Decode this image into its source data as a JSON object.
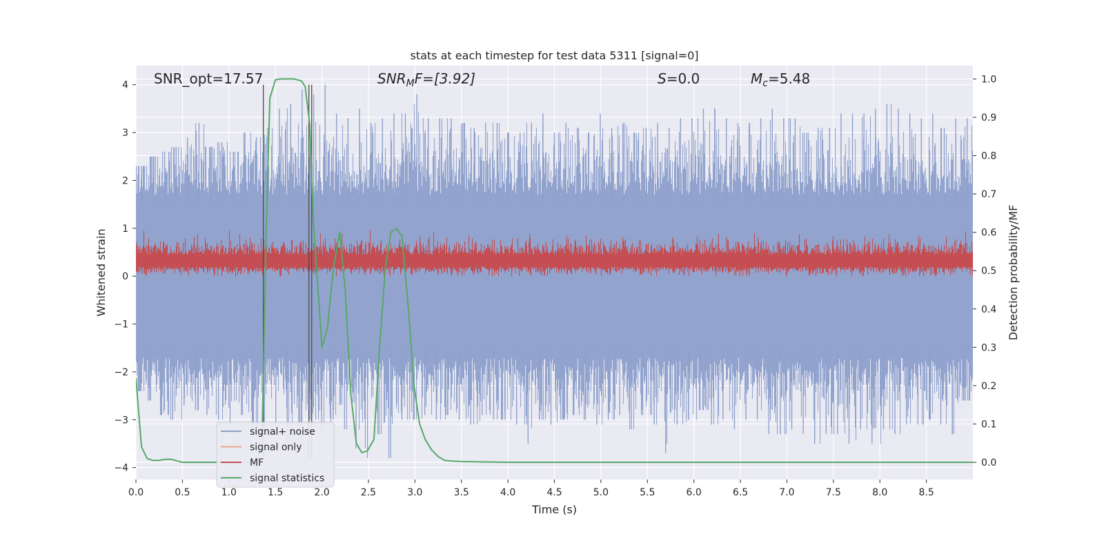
{
  "chart_data": {
    "type": "line",
    "title": "stats at each timestep for test data 5311 [signal=0]",
    "xlabel": "Time (s)",
    "ylabel": "Whitened strain",
    "y2label": "Detection probability/MF",
    "xlim": [
      0.0,
      9.0
    ],
    "ylim": [
      -4.25,
      4.4
    ],
    "y2lim": [
      -0.045,
      1.035
    ],
    "xticks": [
      0.0,
      0.5,
      1.0,
      1.5,
      2.0,
      2.5,
      3.0,
      3.5,
      4.0,
      4.5,
      5.0,
      5.5,
      6.0,
      6.5,
      7.0,
      7.5,
      8.0,
      8.5
    ],
    "xtick_labels": [
      "0.0",
      "0.5",
      "1.0",
      "1.5",
      "2.0",
      "2.5",
      "3.0",
      "3.5",
      "4.0",
      "4.5",
      "5.0",
      "5.5",
      "6.0",
      "6.5",
      "7.0",
      "7.5",
      "8.0",
      "8.5"
    ],
    "yticks": [
      4,
      3,
      2,
      1,
      0,
      -1,
      -2,
      -3,
      -4
    ],
    "ytick_labels": [
      "4",
      "3",
      "2",
      "1",
      "0",
      "−1",
      "−2",
      "−3",
      "−4"
    ],
    "y2ticks": [
      1.0,
      0.9,
      0.8,
      0.7,
      0.6,
      0.5,
      0.4,
      0.3,
      0.2,
      0.1,
      0.0
    ],
    "y2tick_labels": [
      "1.0",
      "0.9",
      "0.8",
      "0.7",
      "0.6",
      "0.5",
      "0.4",
      "0.3",
      "0.2",
      "0.1",
      "0.0"
    ],
    "annotations": {
      "snr_opt": "SNR_opt=17.57",
      "snr_mf_main": "SNR",
      "snr_mf_sub": "M",
      "snr_mf_rest": "F=[3.92]",
      "s_var": "S",
      "s_val": "=0.0",
      "mc_var": "M",
      "mc_sub": "c",
      "mc_val": "=5.48"
    },
    "vertical_markers": [
      {
        "x": 1.37,
        "y_range": [
          -3.8,
          4.0
        ]
      },
      {
        "x": 1.86,
        "y_range": [
          -3.8,
          4.0
        ]
      },
      {
        "x": 1.89,
        "y_range": [
          -3.8,
          4.0
        ]
      }
    ],
    "series": [
      {
        "name": "signal+ noise",
        "color": "#8da0cb",
        "axis": "left",
        "description": "dense whitened noise trace",
        "upper_envelope": [
          2.3,
          2.5,
          2.6,
          2.7,
          2.9,
          3.2,
          2.7,
          2.8,
          2.6,
          3.0,
          2.9,
          3.1,
          3.5,
          3.6,
          3.9,
          3.8,
          4.0,
          3.4,
          3.3,
          3.5,
          3.2,
          3.3,
          3.4,
          3.4,
          3.8,
          3.3,
          3.3,
          3.3,
          3.2,
          3.1,
          3.2,
          3.2,
          3.0,
          3.0,
          3.2,
          3.4,
          3.0,
          3.2,
          3.1,
          3.0,
          3.4,
          3.1,
          3.2,
          3.0,
          3.1,
          3.2,
          3.1,
          3.3,
          3.3,
          3.5,
          3.5,
          3.3,
          3.2,
          3.2,
          3.3,
          3.5,
          3.3,
          3.3,
          3.0,
          3.1,
          3.1,
          3.4,
          3.4,
          3.4,
          3.5,
          3.6,
          3.5,
          3.4,
          3.3,
          3.4,
          3.1,
          3.3,
          3.3
        ],
        "lower_envelope": [
          -2.4,
          -2.6,
          -2.9,
          -3.0,
          -2.7,
          -2.8,
          -2.9,
          -3.0,
          -3.1,
          -2.9,
          -3.3,
          -3.2,
          -3.3,
          -3.6,
          -3.6,
          -3.0,
          -3.2,
          -3.0,
          -3.2,
          -3.6,
          -3.8,
          -3.3,
          -3.8,
          -3.0,
          -3.0,
          -2.9,
          -3.0,
          -2.9,
          -3.0,
          -3.1,
          -2.9,
          -3.0,
          -3.0,
          -3.1,
          -3.5,
          -3.0,
          -3.1,
          -3.0,
          -2.9,
          -3.0,
          -3.1,
          -3.0,
          -2.9,
          -3.2,
          -2.9,
          -3.1,
          -3.7,
          -3.1,
          -3.0,
          -2.8,
          -3.1,
          -3.0,
          -3.2,
          -3.0,
          -3.0,
          -3.3,
          -3.3,
          -3.2,
          -3.3,
          -3.5,
          -3.3,
          -3.3,
          -3.5,
          -3.2,
          -3.5,
          -3.2,
          -3.3,
          -3.1,
          -3.1,
          -3.0,
          -3.1,
          -3.3,
          -2.6
        ]
      },
      {
        "name": "signal only",
        "color": "#e8a98b",
        "axis": "left",
        "description": "not visible in plot area (signal=0)"
      },
      {
        "name": "MF",
        "color": "#c44e52",
        "axis": "left",
        "description": "matched filter trace between about 0.0 and 1.0"
      },
      {
        "name": "signal statistics",
        "color": "#55a868",
        "axis": "right",
        "x": [
          0.0,
          0.06,
          0.12,
          0.18,
          0.25,
          0.32,
          0.38,
          0.45,
          0.5,
          0.6,
          0.8,
          1.0,
          1.1,
          1.2,
          1.26,
          1.31,
          1.36,
          1.4,
          1.44,
          1.5,
          1.56,
          1.6,
          1.7,
          1.78,
          1.82,
          1.87,
          1.91,
          1.95,
          2.0,
          2.06,
          2.12,
          2.19,
          2.25,
          2.31,
          2.37,
          2.43,
          2.49,
          2.56,
          2.62,
          2.68,
          2.74,
          2.8,
          2.86,
          2.93,
          2.99,
          3.05,
          3.11,
          3.18,
          3.25,
          3.32,
          3.4,
          3.5,
          3.7,
          4.0,
          5.0,
          6.0,
          7.0,
          8.0,
          9.0
        ],
        "values": [
          0.22,
          0.04,
          0.01,
          0.005,
          0.005,
          0.008,
          0.008,
          0.003,
          0.0,
          0.0,
          0.0,
          0.0,
          0.0,
          0.0,
          0.0,
          0.01,
          0.1,
          0.6,
          0.95,
          0.998,
          1.0,
          1.0,
          1.0,
          0.995,
          0.98,
          0.88,
          0.62,
          0.48,
          0.3,
          0.35,
          0.5,
          0.6,
          0.45,
          0.18,
          0.05,
          0.025,
          0.03,
          0.06,
          0.3,
          0.5,
          0.6,
          0.61,
          0.59,
          0.4,
          0.2,
          0.1,
          0.06,
          0.032,
          0.015,
          0.005,
          0.003,
          0.002,
          0.001,
          0.0,
          0.0,
          0.0,
          0.0,
          0.0,
          0.0
        ]
      }
    ],
    "legend": {
      "placement": "lower-left",
      "entries": [
        {
          "label": "signal+ noise",
          "color": "#8da0cb"
        },
        {
          "label": "signal only",
          "color": "#e8a98b"
        },
        {
          "label": "MF",
          "color": "#c44e52"
        },
        {
          "label": "signal statistics",
          "color": "#55a868"
        }
      ]
    },
    "style": {
      "axes_bg": "#eaeaf2",
      "grid_color": "#ffffff",
      "text_color": "#262626"
    }
  }
}
